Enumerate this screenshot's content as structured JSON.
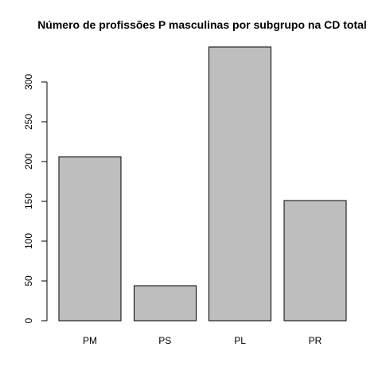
{
  "chart_data": {
    "type": "bar",
    "title": "Número de profissões P masculinas por subgrupo na CD total",
    "xlabel": "",
    "ylabel": "",
    "categories": [
      "PM",
      "PS",
      "PL",
      "PR"
    ],
    "values": [
      206,
      44,
      344,
      151
    ],
    "ylim": [
      0,
      344
    ],
    "yticks": [
      0,
      50,
      100,
      150,
      200,
      250,
      300
    ],
    "bar_color": "#bebebe",
    "border_color": "#000000",
    "grid": false,
    "legend": "none"
  }
}
